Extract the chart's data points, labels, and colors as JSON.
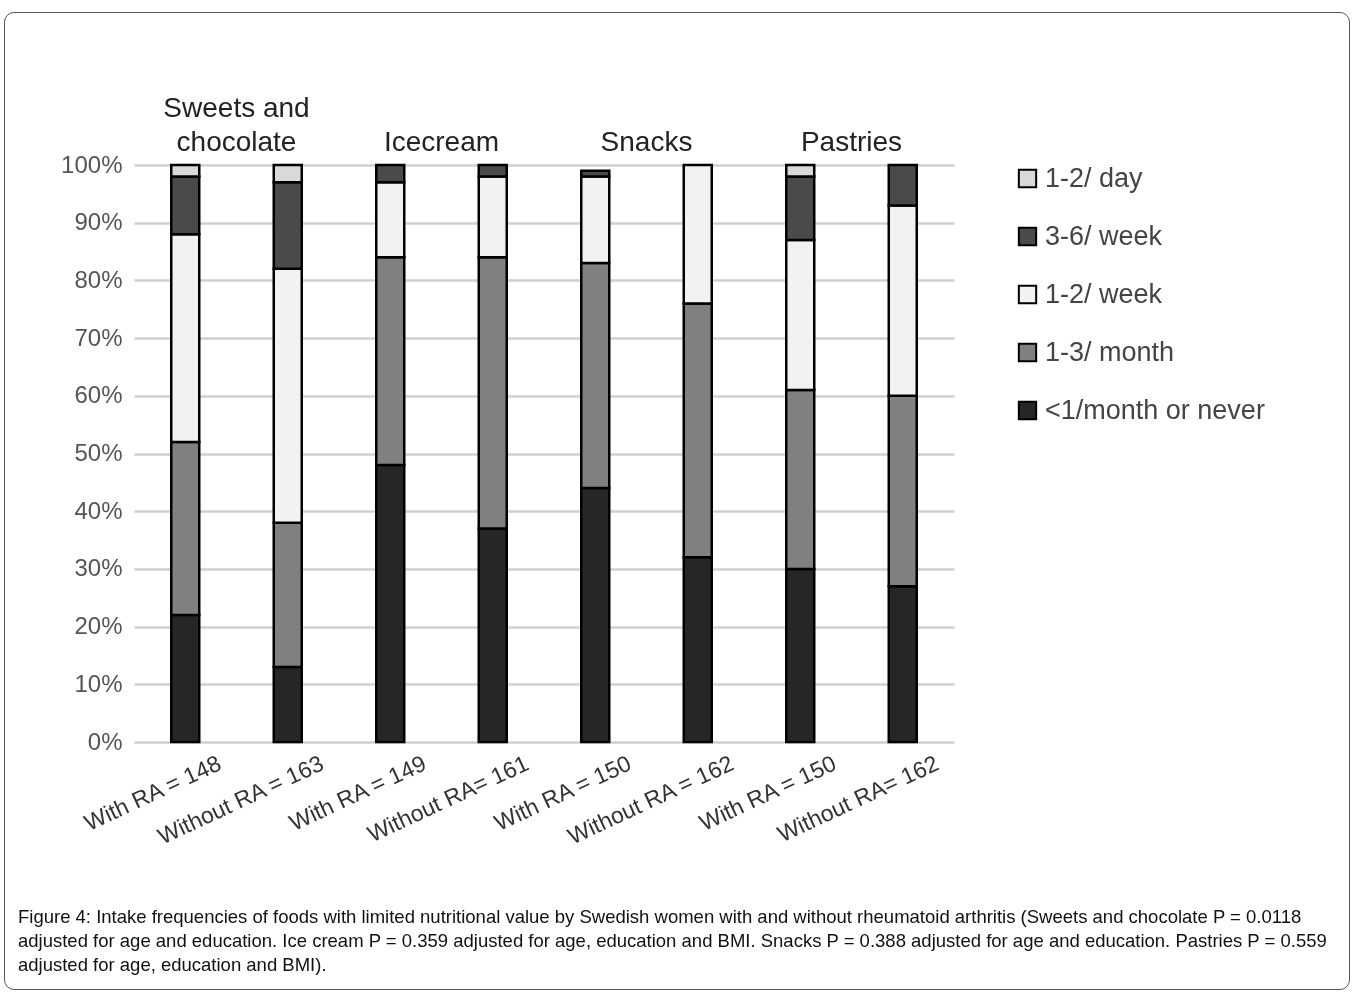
{
  "chart_data": {
    "type": "bar",
    "stacked": true,
    "categories": [
      "With RA = 148",
      "Without RA = 163",
      "With RA = 149",
      "Without RA= 161",
      "With RA = 150",
      "Without RA = 162",
      "With RA = 150",
      "Without RA= 162"
    ],
    "series": [
      {
        "name": "<1/month or never",
        "color": "#262626",
        "values": [
          22,
          13,
          48,
          37,
          44,
          32,
          30,
          27
        ]
      },
      {
        "name": "1-3/ month",
        "color": "#808080",
        "values": [
          30,
          25,
          36,
          47,
          39,
          44,
          31,
          33
        ]
      },
      {
        "name": "1-2/ week",
        "color": "#f2f2f2",
        "values": [
          36,
          44,
          13,
          14,
          15,
          24,
          26,
          33
        ]
      },
      {
        "name": "3-6/ week",
        "color": "#4a4a4a",
        "values": [
          10,
          15,
          3,
          2,
          1,
          null,
          11,
          7
        ]
      },
      {
        "name": "1-2/ day",
        "color": "#d9d9d9",
        "values": [
          2,
          3,
          null,
          null,
          null,
          null,
          2,
          null
        ]
      }
    ],
    "ylim": [
      0,
      100
    ],
    "yticks": [
      {
        "value": 0,
        "label": "0%"
      },
      {
        "value": 10,
        "label": "10%"
      },
      {
        "value": 20,
        "label": "20%"
      },
      {
        "value": 30,
        "label": "30%"
      },
      {
        "value": 40,
        "label": "40%"
      },
      {
        "value": 50,
        "label": "50%"
      },
      {
        "value": 60,
        "label": "60%"
      },
      {
        "value": 70,
        "label": "70%"
      },
      {
        "value": 80,
        "label": "80%"
      },
      {
        "value": 90,
        "label": "90%"
      },
      {
        "value": 100,
        "label": "100%"
      }
    ],
    "grid": "y",
    "legend": "right",
    "annotations": [
      "Sweets and chocolate",
      "Icecream",
      "Snacks",
      "Pastries",
      "Figure 4: Intake frequencies of foods with limited nutritional value by Swedish women with and without rheumatoid arthritis (Sweets and chocolate P = 0.0118 adjusted for age and education. Ice cream P = 0.359 adjusted for age, education and BMI. Snacks P = 0.388 adjusted for age and education. Pastries P = 0.559 adjusted for age, education and BMI)."
    ]
  }
}
